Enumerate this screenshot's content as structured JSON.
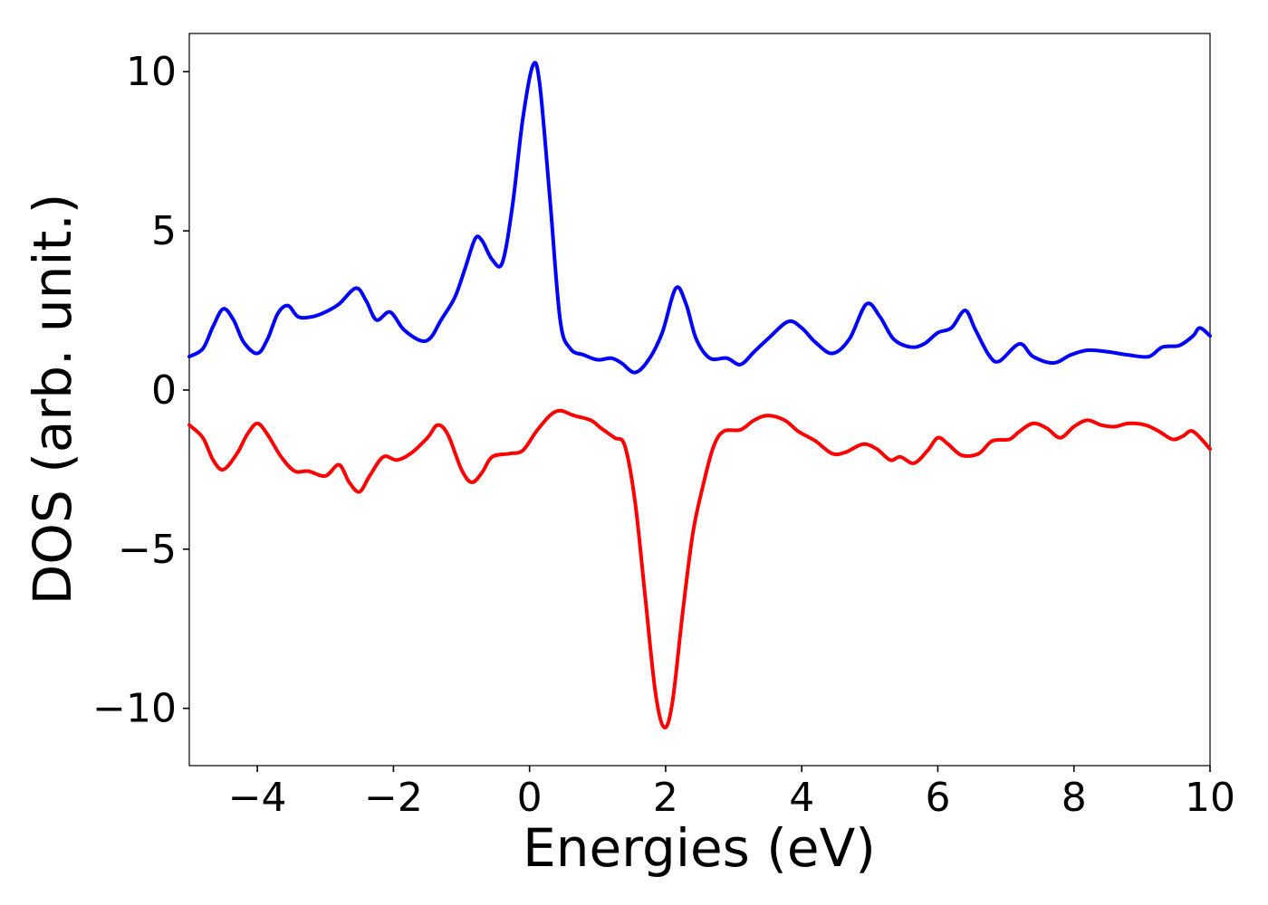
{
  "chart_data": {
    "type": "line",
    "xlabel": "Energies (eV)",
    "ylabel": "DOS (arb. unit.)",
    "xlim": [
      -5,
      10
    ],
    "ylim": [
      -11.8,
      11.2
    ],
    "x_ticks": [
      -4,
      -2,
      0,
      2,
      4,
      6,
      8,
      10
    ],
    "x_tick_labels": [
      "−4",
      "−2",
      "0",
      "2",
      "4",
      "6",
      "8",
      "10"
    ],
    "y_ticks": [
      10,
      5,
      0,
      -5,
      -10
    ],
    "y_tick_labels": [
      "10",
      "5",
      "0",
      "−5",
      "−10"
    ],
    "grid": false,
    "series": [
      {
        "color": "#0000ff",
        "points": [
          [
            -5.0,
            1.05
          ],
          [
            -4.8,
            1.3
          ],
          [
            -4.65,
            2.0
          ],
          [
            -4.5,
            2.55
          ],
          [
            -4.35,
            2.2
          ],
          [
            -4.2,
            1.5
          ],
          [
            -4.0,
            1.15
          ],
          [
            -3.85,
            1.6
          ],
          [
            -3.7,
            2.4
          ],
          [
            -3.55,
            2.65
          ],
          [
            -3.4,
            2.3
          ],
          [
            -3.2,
            2.3
          ],
          [
            -3.0,
            2.45
          ],
          [
            -2.8,
            2.7
          ],
          [
            -2.55,
            3.2
          ],
          [
            -2.4,
            2.8
          ],
          [
            -2.25,
            2.2
          ],
          [
            -2.05,
            2.45
          ],
          [
            -1.85,
            1.9
          ],
          [
            -1.6,
            1.55
          ],
          [
            -1.45,
            1.65
          ],
          [
            -1.3,
            2.2
          ],
          [
            -1.1,
            2.9
          ],
          [
            -0.95,
            3.8
          ],
          [
            -0.8,
            4.75
          ],
          [
            -0.7,
            4.7
          ],
          [
            -0.55,
            4.1
          ],
          [
            -0.4,
            4.0
          ],
          [
            -0.25,
            5.8
          ],
          [
            -0.1,
            8.5
          ],
          [
            0.05,
            10.2
          ],
          [
            0.15,
            9.6
          ],
          [
            0.3,
            6.0
          ],
          [
            0.45,
            2.2
          ],
          [
            0.6,
            1.3
          ],
          [
            0.8,
            1.1
          ],
          [
            1.0,
            0.95
          ],
          [
            1.2,
            1.0
          ],
          [
            1.35,
            0.85
          ],
          [
            1.55,
            0.55
          ],
          [
            1.75,
            0.95
          ],
          [
            1.95,
            1.8
          ],
          [
            2.15,
            3.2
          ],
          [
            2.3,
            2.7
          ],
          [
            2.45,
            1.6
          ],
          [
            2.65,
            1.0
          ],
          [
            2.9,
            1.0
          ],
          [
            3.1,
            0.8
          ],
          [
            3.3,
            1.2
          ],
          [
            3.5,
            1.6
          ],
          [
            3.8,
            2.15
          ],
          [
            4.0,
            1.95
          ],
          [
            4.2,
            1.5
          ],
          [
            4.45,
            1.15
          ],
          [
            4.7,
            1.6
          ],
          [
            4.95,
            2.7
          ],
          [
            5.15,
            2.3
          ],
          [
            5.35,
            1.6
          ],
          [
            5.6,
            1.35
          ],
          [
            5.8,
            1.45
          ],
          [
            6.0,
            1.8
          ],
          [
            6.2,
            1.95
          ],
          [
            6.4,
            2.5
          ],
          [
            6.55,
            1.9
          ],
          [
            6.75,
            1.1
          ],
          [
            6.9,
            0.9
          ],
          [
            7.2,
            1.45
          ],
          [
            7.4,
            1.05
          ],
          [
            7.7,
            0.85
          ],
          [
            7.95,
            1.1
          ],
          [
            8.2,
            1.25
          ],
          [
            8.5,
            1.2
          ],
          [
            8.8,
            1.1
          ],
          [
            9.1,
            1.05
          ],
          [
            9.3,
            1.35
          ],
          [
            9.55,
            1.4
          ],
          [
            9.75,
            1.7
          ],
          [
            9.85,
            1.95
          ],
          [
            10.0,
            1.7
          ]
        ]
      },
      {
        "color": "#ff0000",
        "points": [
          [
            -5.0,
            -1.1
          ],
          [
            -4.8,
            -1.5
          ],
          [
            -4.65,
            -2.2
          ],
          [
            -4.5,
            -2.5
          ],
          [
            -4.3,
            -2.0
          ],
          [
            -4.15,
            -1.4
          ],
          [
            -4.0,
            -1.05
          ],
          [
            -3.85,
            -1.4
          ],
          [
            -3.65,
            -2.1
          ],
          [
            -3.45,
            -2.55
          ],
          [
            -3.25,
            -2.55
          ],
          [
            -3.0,
            -2.7
          ],
          [
            -2.8,
            -2.35
          ],
          [
            -2.65,
            -2.9
          ],
          [
            -2.5,
            -3.2
          ],
          [
            -2.35,
            -2.7
          ],
          [
            -2.15,
            -2.1
          ],
          [
            -1.95,
            -2.2
          ],
          [
            -1.75,
            -2.0
          ],
          [
            -1.5,
            -1.5
          ],
          [
            -1.35,
            -1.1
          ],
          [
            -1.2,
            -1.4
          ],
          [
            -1.0,
            -2.5
          ],
          [
            -0.85,
            -2.9
          ],
          [
            -0.7,
            -2.6
          ],
          [
            -0.55,
            -2.1
          ],
          [
            -0.3,
            -2.0
          ],
          [
            -0.1,
            -1.9
          ],
          [
            0.1,
            -1.3
          ],
          [
            0.3,
            -0.8
          ],
          [
            0.45,
            -0.65
          ],
          [
            0.65,
            -0.8
          ],
          [
            0.9,
            -0.95
          ],
          [
            1.05,
            -1.2
          ],
          [
            1.25,
            -1.5
          ],
          [
            1.4,
            -1.75
          ],
          [
            1.55,
            -3.5
          ],
          [
            1.7,
            -6.5
          ],
          [
            1.85,
            -9.5
          ],
          [
            1.98,
            -10.6
          ],
          [
            2.1,
            -9.8
          ],
          [
            2.25,
            -7.0
          ],
          [
            2.4,
            -4.5
          ],
          [
            2.55,
            -3.0
          ],
          [
            2.7,
            -1.8
          ],
          [
            2.85,
            -1.3
          ],
          [
            3.1,
            -1.25
          ],
          [
            3.3,
            -0.95
          ],
          [
            3.5,
            -0.8
          ],
          [
            3.75,
            -0.95
          ],
          [
            3.95,
            -1.3
          ],
          [
            4.2,
            -1.6
          ],
          [
            4.45,
            -2.0
          ],
          [
            4.65,
            -1.95
          ],
          [
            4.9,
            -1.7
          ],
          [
            5.1,
            -1.85
          ],
          [
            5.3,
            -2.2
          ],
          [
            5.45,
            -2.1
          ],
          [
            5.65,
            -2.3
          ],
          [
            5.85,
            -1.9
          ],
          [
            6.0,
            -1.5
          ],
          [
            6.15,
            -1.7
          ],
          [
            6.35,
            -2.05
          ],
          [
            6.6,
            -2.0
          ],
          [
            6.8,
            -1.6
          ],
          [
            7.05,
            -1.55
          ],
          [
            7.2,
            -1.3
          ],
          [
            7.4,
            -1.05
          ],
          [
            7.6,
            -1.2
          ],
          [
            7.8,
            -1.5
          ],
          [
            8.0,
            -1.15
          ],
          [
            8.2,
            -0.95
          ],
          [
            8.4,
            -1.1
          ],
          [
            8.6,
            -1.15
          ],
          [
            8.8,
            -1.05
          ],
          [
            9.05,
            -1.1
          ],
          [
            9.25,
            -1.3
          ],
          [
            9.45,
            -1.55
          ],
          [
            9.6,
            -1.45
          ],
          [
            9.75,
            -1.3
          ],
          [
            10.0,
            -1.85
          ]
        ]
      }
    ]
  }
}
